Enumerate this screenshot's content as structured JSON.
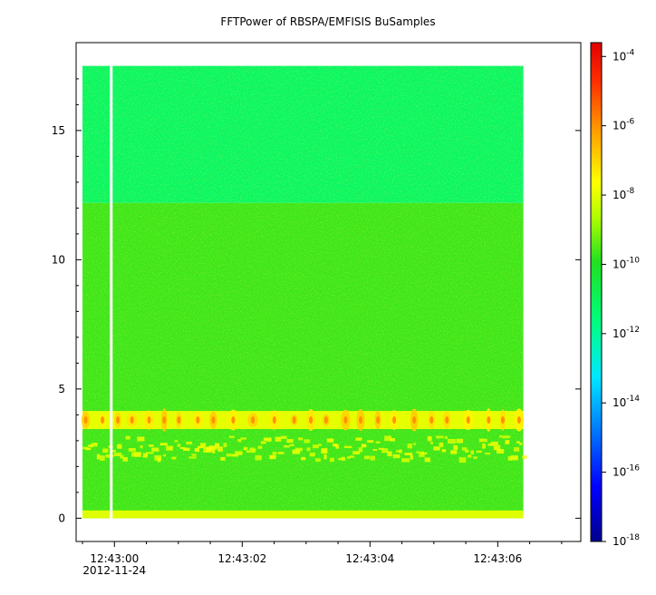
{
  "chart_data": {
    "type": "heatmap",
    "title": "FFTPower of RBSPA/EMFISIS  BuSamples",
    "xlabel": "",
    "ylabel": "",
    "x_date_label": "2012-11-24",
    "x_ticks": [
      {
        "label": "12:43:00",
        "t": 0
      },
      {
        "label": "12:43:02",
        "t": 2
      },
      {
        "label": "12:43:04",
        "t": 4
      },
      {
        "label": "12:43:06",
        "t": 6
      }
    ],
    "x_range_seconds": [
      -0.6,
      7.3
    ],
    "data_x_range_seconds": [
      -0.5,
      6.4
    ],
    "gap_at_seconds": -0.05,
    "y_ticks": [
      0,
      5,
      10,
      15
    ],
    "ylim": [
      -0.9,
      18.4
    ],
    "data_y_range": [
      0,
      17.5
    ],
    "colorbar": {
      "scale": "log",
      "range": [
        -18,
        -3.6
      ],
      "tick_exponents": [
        -4,
        -6,
        -8,
        -10,
        -12,
        -14,
        -16,
        -18
      ],
      "tick_base": "10",
      "colors": [
        "#00008c",
        "#0000ff",
        "#0080ff",
        "#00e8ff",
        "#00ff80",
        "#20e020",
        "#b0ff00",
        "#ffff00",
        "#ffa000",
        "#ff3000",
        "#e00000"
      ]
    },
    "features": [
      {
        "name": "background",
        "freq_range": [
          0,
          12.2
        ],
        "log10_power": -10.5
      },
      {
        "name": "upper-band",
        "freq_range": [
          12.2,
          17.5
        ],
        "log10_power": -11.8
      },
      {
        "name": "emission-band",
        "freq_center": 3.8,
        "log10_power": -7.8
      },
      {
        "name": "secondary-band",
        "freq_center": 2.7,
        "log10_power": -8.8
      },
      {
        "name": "low-freq-edge",
        "freq_center": 0.1,
        "log10_power": -8.5
      }
    ]
  }
}
